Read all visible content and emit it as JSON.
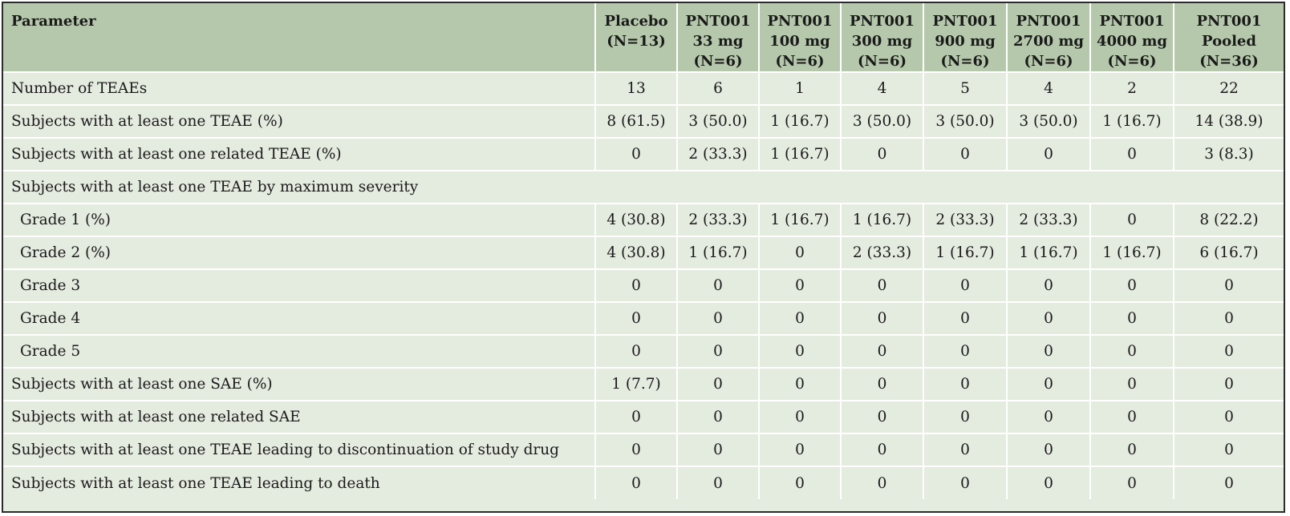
{
  "table": {
    "header": {
      "parameter": "Parameter",
      "columns": [
        {
          "lines": [
            "Placebo",
            "(N=13)"
          ]
        },
        {
          "lines": [
            "PNT001",
            "33 mg",
            "(N=6)"
          ]
        },
        {
          "lines": [
            "PNT001",
            "100 mg",
            "(N=6)"
          ]
        },
        {
          "lines": [
            "PNT001",
            "300 mg",
            "(N=6)"
          ]
        },
        {
          "lines": [
            "PNT001",
            "900 mg",
            "(N=6)"
          ]
        },
        {
          "lines": [
            "PNT001",
            "2700 mg",
            "(N=6)"
          ]
        },
        {
          "lines": [
            "PNT001",
            "4000 mg",
            "(N=6)"
          ]
        },
        {
          "lines": [
            "PNT001",
            "Pooled",
            "(N=36)"
          ]
        }
      ]
    },
    "rows": [
      {
        "label": "Number of TEAEs",
        "values": [
          "13",
          "6",
          "1",
          "4",
          "5",
          "4",
          "2",
          "22"
        ]
      },
      {
        "label": "Subjects with at least one TEAE (%)",
        "values": [
          "8 (61.5)",
          "3 (50.0)",
          "1 (16.7)",
          "3 (50.0)",
          "3 (50.0)",
          "3 (50.0)",
          "1 (16.7)",
          "14 (38.9)"
        ]
      },
      {
        "label": "Subjects with at least one related TEAE (%)",
        "values": [
          "0",
          "2 (33.3)",
          "1 (16.7)",
          "0",
          "0",
          "0",
          "0",
          "3 (8.3)"
        ]
      },
      {
        "label": "Subjects with at least one TEAE by maximum severity",
        "section": true
      },
      {
        "label": "Grade 1 (%)",
        "indent": true,
        "values": [
          "4 (30.8)",
          "2 (33.3)",
          "1 (16.7)",
          "1 (16.7)",
          "2 (33.3)",
          "2 (33.3)",
          "0",
          "8 (22.2)"
        ]
      },
      {
        "label": "Grade 2 (%)",
        "indent": true,
        "values": [
          "4 (30.8)",
          "1 (16.7)",
          "0",
          "2 (33.3)",
          "1 (16.7)",
          "1 (16.7)",
          "1 (16.7)",
          "6 (16.7)"
        ]
      },
      {
        "label": "Grade 3",
        "indent": true,
        "values": [
          "0",
          "0",
          "0",
          "0",
          "0",
          "0",
          "0",
          "0"
        ]
      },
      {
        "label": "Grade 4",
        "indent": true,
        "values": [
          "0",
          "0",
          "0",
          "0",
          "0",
          "0",
          "0",
          "0"
        ]
      },
      {
        "label": "Grade 5",
        "indent": true,
        "values": [
          "0",
          "0",
          "0",
          "0",
          "0",
          "0",
          "0",
          "0"
        ]
      },
      {
        "label": "Subjects with at least one SAE (%)",
        "values": [
          "1 (7.7)",
          "0",
          "0",
          "0",
          "0",
          "0",
          "0",
          "0"
        ]
      },
      {
        "label": "Subjects with at least one related SAE",
        "values": [
          "0",
          "0",
          "0",
          "0",
          "0",
          "0",
          "0",
          "0"
        ]
      },
      {
        "label": "Subjects with at least one TEAE leading to discontinuation of study drug",
        "values": [
          "0",
          "0",
          "0",
          "0",
          "0",
          "0",
          "0",
          "0"
        ]
      },
      {
        "label": "Subjects with at least one TEAE leading to death",
        "values": [
          "0",
          "0",
          "0",
          "0",
          "0",
          "0",
          "0",
          "0"
        ]
      }
    ]
  },
  "colors": {
    "header_background": "#b5c8ab",
    "body_background": "#e4ebdf",
    "cell_separator": "#ffffff",
    "outer_border": "#2b2b2b"
  }
}
